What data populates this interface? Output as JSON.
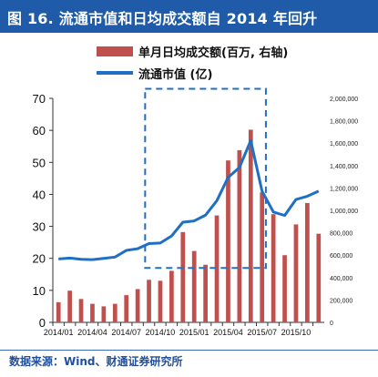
{
  "title": "图 16. 流通市值和日均成交额自 2014 年回升",
  "legend": {
    "bar_label": "单月日均成交额(百万, 右轴)",
    "line_label": "流通市值 (亿)"
  },
  "source": "数据来源：Wind、财通证券研究所",
  "colors": {
    "bar": "#c0504d",
    "line": "#1f6fc5",
    "title_bg": "#1f5ba8",
    "box": "#1f6fc5"
  },
  "chart_data": {
    "type": "bar+line",
    "categories": [
      "2014/01",
      "2014/02",
      "2014/03",
      "2014/04",
      "2014/05",
      "2014/06",
      "2014/07",
      "2014/08",
      "2014/09",
      "2014/10",
      "2014/11",
      "2014/12",
      "2015/01",
      "2015/02",
      "2015/03",
      "2015/04",
      "2015/05",
      "2015/06",
      "2015/07",
      "2015/08",
      "2015/09",
      "2015/10",
      "2015/11",
      "2015/12"
    ],
    "x_tick_labels": [
      "2014/01",
      "2014/04",
      "2014/07",
      "2014/10",
      "2015/01",
      "2015/04",
      "2015/07",
      "2015/10"
    ],
    "series": [
      {
        "name": "单月日均成交额(百万, 右轴)",
        "type": "bar",
        "axis": "right",
        "values": [
          6.3,
          9.9,
          7.3,
          5.8,
          5.0,
          5.8,
          8.5,
          10.4,
          13.3,
          13.0,
          16.1,
          28.2,
          22.3,
          18.0,
          33.4,
          50.6,
          53.8,
          60.2,
          40.6,
          33.8,
          21.0,
          30.6,
          37.3,
          27.7
        ],
        "units": "million, plotted on left-scale equivalent (1 left unit = 28,571 right units)"
      },
      {
        "name": "流通市值 (亿)",
        "type": "line",
        "axis": "left",
        "values": [
          19.8,
          20.1,
          19.7,
          19.6,
          20.0,
          20.4,
          22.5,
          23.0,
          24.6,
          24.8,
          27.0,
          31.3,
          31.7,
          33.5,
          38.0,
          45.3,
          48.4,
          56.8,
          41.0,
          34.5,
          33.4,
          38.4,
          39.4,
          41.0
        ]
      }
    ],
    "y_left": {
      "min": 0,
      "max": 70,
      "ticks": [
        0,
        10,
        20,
        30,
        40,
        50,
        60,
        70
      ]
    },
    "y_right": {
      "min": 0,
      "max": 2000000,
      "ticks": [
        "0",
        "200,000",
        "400,000",
        "600,000",
        "800,000",
        "1,000,000",
        "1,200,000",
        "1,400,000",
        "1,600,000",
        "1,800,000",
        "2,000,000"
      ]
    },
    "highlight_box": {
      "from_category": "2014/09",
      "to_category": "2015/07",
      "y_from": 17,
      "y_to": 73
    },
    "grid": false
  }
}
